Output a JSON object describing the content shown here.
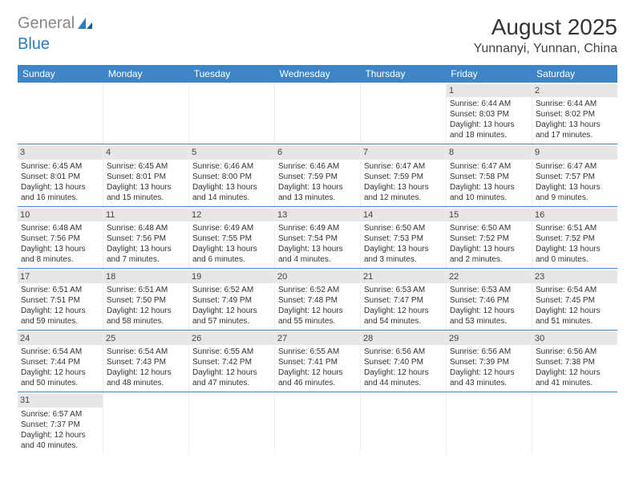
{
  "logo": {
    "part1": "General",
    "part2": "Blue"
  },
  "title": "August 2025",
  "location": "Yunnanyi, Yunnan, China",
  "colors": {
    "header_bg": "#3d85c6",
    "header_fg": "#ffffff",
    "num_bg": "#e6e6e6",
    "border": "#3d85c6"
  },
  "dayNames": [
    "Sunday",
    "Monday",
    "Tuesday",
    "Wednesday",
    "Thursday",
    "Friday",
    "Saturday"
  ],
  "weeks": [
    [
      {
        "n": "",
        "sr": "",
        "ss": "",
        "dl": ""
      },
      {
        "n": "",
        "sr": "",
        "ss": "",
        "dl": ""
      },
      {
        "n": "",
        "sr": "",
        "ss": "",
        "dl": ""
      },
      {
        "n": "",
        "sr": "",
        "ss": "",
        "dl": ""
      },
      {
        "n": "",
        "sr": "",
        "ss": "",
        "dl": ""
      },
      {
        "n": "1",
        "sr": "Sunrise: 6:44 AM",
        "ss": "Sunset: 8:03 PM",
        "dl": "Daylight: 13 hours and 18 minutes."
      },
      {
        "n": "2",
        "sr": "Sunrise: 6:44 AM",
        "ss": "Sunset: 8:02 PM",
        "dl": "Daylight: 13 hours and 17 minutes."
      }
    ],
    [
      {
        "n": "3",
        "sr": "Sunrise: 6:45 AM",
        "ss": "Sunset: 8:01 PM",
        "dl": "Daylight: 13 hours and 16 minutes."
      },
      {
        "n": "4",
        "sr": "Sunrise: 6:45 AM",
        "ss": "Sunset: 8:01 PM",
        "dl": "Daylight: 13 hours and 15 minutes."
      },
      {
        "n": "5",
        "sr": "Sunrise: 6:46 AM",
        "ss": "Sunset: 8:00 PM",
        "dl": "Daylight: 13 hours and 14 minutes."
      },
      {
        "n": "6",
        "sr": "Sunrise: 6:46 AM",
        "ss": "Sunset: 7:59 PM",
        "dl": "Daylight: 13 hours and 13 minutes."
      },
      {
        "n": "7",
        "sr": "Sunrise: 6:47 AM",
        "ss": "Sunset: 7:59 PM",
        "dl": "Daylight: 13 hours and 12 minutes."
      },
      {
        "n": "8",
        "sr": "Sunrise: 6:47 AM",
        "ss": "Sunset: 7:58 PM",
        "dl": "Daylight: 13 hours and 10 minutes."
      },
      {
        "n": "9",
        "sr": "Sunrise: 6:47 AM",
        "ss": "Sunset: 7:57 PM",
        "dl": "Daylight: 13 hours and 9 minutes."
      }
    ],
    [
      {
        "n": "10",
        "sr": "Sunrise: 6:48 AM",
        "ss": "Sunset: 7:56 PM",
        "dl": "Daylight: 13 hours and 8 minutes."
      },
      {
        "n": "11",
        "sr": "Sunrise: 6:48 AM",
        "ss": "Sunset: 7:56 PM",
        "dl": "Daylight: 13 hours and 7 minutes."
      },
      {
        "n": "12",
        "sr": "Sunrise: 6:49 AM",
        "ss": "Sunset: 7:55 PM",
        "dl": "Daylight: 13 hours and 6 minutes."
      },
      {
        "n": "13",
        "sr": "Sunrise: 6:49 AM",
        "ss": "Sunset: 7:54 PM",
        "dl": "Daylight: 13 hours and 4 minutes."
      },
      {
        "n": "14",
        "sr": "Sunrise: 6:50 AM",
        "ss": "Sunset: 7:53 PM",
        "dl": "Daylight: 13 hours and 3 minutes."
      },
      {
        "n": "15",
        "sr": "Sunrise: 6:50 AM",
        "ss": "Sunset: 7:52 PM",
        "dl": "Daylight: 13 hours and 2 minutes."
      },
      {
        "n": "16",
        "sr": "Sunrise: 6:51 AM",
        "ss": "Sunset: 7:52 PM",
        "dl": "Daylight: 13 hours and 0 minutes."
      }
    ],
    [
      {
        "n": "17",
        "sr": "Sunrise: 6:51 AM",
        "ss": "Sunset: 7:51 PM",
        "dl": "Daylight: 12 hours and 59 minutes."
      },
      {
        "n": "18",
        "sr": "Sunrise: 6:51 AM",
        "ss": "Sunset: 7:50 PM",
        "dl": "Daylight: 12 hours and 58 minutes."
      },
      {
        "n": "19",
        "sr": "Sunrise: 6:52 AM",
        "ss": "Sunset: 7:49 PM",
        "dl": "Daylight: 12 hours and 57 minutes."
      },
      {
        "n": "20",
        "sr": "Sunrise: 6:52 AM",
        "ss": "Sunset: 7:48 PM",
        "dl": "Daylight: 12 hours and 55 minutes."
      },
      {
        "n": "21",
        "sr": "Sunrise: 6:53 AM",
        "ss": "Sunset: 7:47 PM",
        "dl": "Daylight: 12 hours and 54 minutes."
      },
      {
        "n": "22",
        "sr": "Sunrise: 6:53 AM",
        "ss": "Sunset: 7:46 PM",
        "dl": "Daylight: 12 hours and 53 minutes."
      },
      {
        "n": "23",
        "sr": "Sunrise: 6:54 AM",
        "ss": "Sunset: 7:45 PM",
        "dl": "Daylight: 12 hours and 51 minutes."
      }
    ],
    [
      {
        "n": "24",
        "sr": "Sunrise: 6:54 AM",
        "ss": "Sunset: 7:44 PM",
        "dl": "Daylight: 12 hours and 50 minutes."
      },
      {
        "n": "25",
        "sr": "Sunrise: 6:54 AM",
        "ss": "Sunset: 7:43 PM",
        "dl": "Daylight: 12 hours and 48 minutes."
      },
      {
        "n": "26",
        "sr": "Sunrise: 6:55 AM",
        "ss": "Sunset: 7:42 PM",
        "dl": "Daylight: 12 hours and 47 minutes."
      },
      {
        "n": "27",
        "sr": "Sunrise: 6:55 AM",
        "ss": "Sunset: 7:41 PM",
        "dl": "Daylight: 12 hours and 46 minutes."
      },
      {
        "n": "28",
        "sr": "Sunrise: 6:56 AM",
        "ss": "Sunset: 7:40 PM",
        "dl": "Daylight: 12 hours and 44 minutes."
      },
      {
        "n": "29",
        "sr": "Sunrise: 6:56 AM",
        "ss": "Sunset: 7:39 PM",
        "dl": "Daylight: 12 hours and 43 minutes."
      },
      {
        "n": "30",
        "sr": "Sunrise: 6:56 AM",
        "ss": "Sunset: 7:38 PM",
        "dl": "Daylight: 12 hours and 41 minutes."
      }
    ],
    [
      {
        "n": "31",
        "sr": "Sunrise: 6:57 AM",
        "ss": "Sunset: 7:37 PM",
        "dl": "Daylight: 12 hours and 40 minutes."
      },
      {
        "n": "",
        "sr": "",
        "ss": "",
        "dl": ""
      },
      {
        "n": "",
        "sr": "",
        "ss": "",
        "dl": ""
      },
      {
        "n": "",
        "sr": "",
        "ss": "",
        "dl": ""
      },
      {
        "n": "",
        "sr": "",
        "ss": "",
        "dl": ""
      },
      {
        "n": "",
        "sr": "",
        "ss": "",
        "dl": ""
      },
      {
        "n": "",
        "sr": "",
        "ss": "",
        "dl": ""
      }
    ]
  ]
}
